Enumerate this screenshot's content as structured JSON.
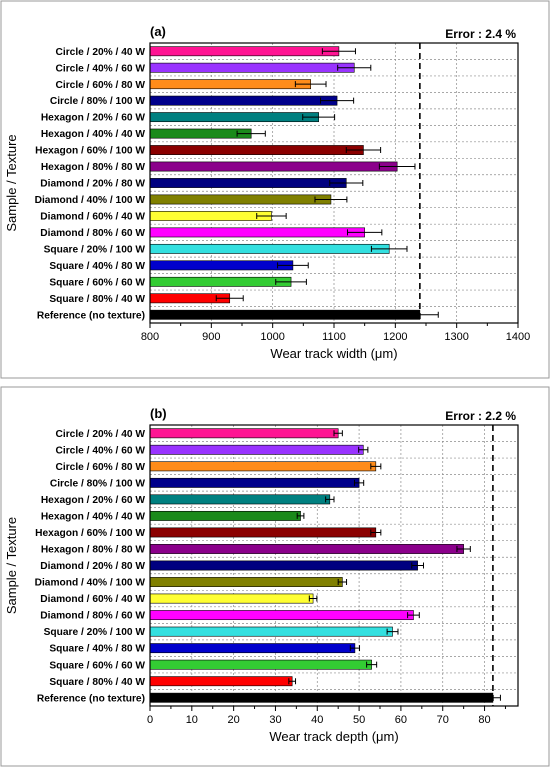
{
  "figure": {
    "ylabel": "Sample / Texture"
  },
  "chart_data": [
    {
      "type": "bar",
      "orientation": "horizontal",
      "panel": "(a)",
      "annotation": "Error : 2.4 %",
      "xlabel": "Wear track width",
      "xunit": "μm",
      "xlim": [
        800,
        1400
      ],
      "xticks": [
        800,
        900,
        1000,
        1100,
        1200,
        1300,
        1400
      ],
      "reference_line": 1240,
      "grid": true,
      "categories": [
        "Circle / 20% / 40 W",
        "Circle / 40% / 60 W",
        "Circle / 60% / 80 W",
        "Circle / 80% / 100 W",
        "Hexagon / 20% / 60 W",
        "Hexagon / 40% / 40 W",
        "Hexagon / 60% / 100 W",
        "Hexagon / 80% / 80 W",
        "Diamond / 20% / 80 W",
        "Diamond / 40% / 100 W",
        "Diamond / 60% / 40 W",
        "Diamond / 80% / 60 W",
        "Square / 20% / 100 W",
        "Square / 40% / 80 W",
        "Square / 60% / 60 W",
        "Square / 80% / 40 W",
        "Reference (no texture)"
      ],
      "values": [
        1108,
        1133,
        1062,
        1105,
        1075,
        965,
        1148,
        1203,
        1120,
        1095,
        998,
        1150,
        1190,
        1033,
        1030,
        930,
        1240
      ],
      "errors": [
        27,
        27,
        25,
        27,
        26,
        23,
        28,
        29,
        27,
        26,
        24,
        28,
        29,
        25,
        25,
        22,
        30
      ],
      "colors": [
        "#ff1493",
        "#9933ff",
        "#ff8c1a",
        "#00008b",
        "#008080",
        "#1a8a1a",
        "#8b0000",
        "#8b008b",
        "#000080",
        "#808000",
        "#ffff33",
        "#ff00ff",
        "#33e0e0",
        "#0000cc",
        "#33cc33",
        "#ff0000",
        "#000000"
      ]
    },
    {
      "type": "bar",
      "orientation": "horizontal",
      "panel": "(b)",
      "annotation": "Error : 2.2 %",
      "xlabel": "Wear track depth",
      "xunit": "μm",
      "xlim": [
        0,
        88
      ],
      "xticks": [
        0,
        10,
        20,
        30,
        40,
        50,
        60,
        70,
        80
      ],
      "reference_line": 82,
      "grid": true,
      "categories": [
        "Circle / 20% / 40 W",
        "Circle / 40% / 60 W",
        "Circle / 60% / 80 W",
        "Circle / 80% / 100 W",
        "Hexagon / 20% / 60 W",
        "Hexagon / 40% / 40 W",
        "Hexagon / 60% / 100 W",
        "Hexagon / 80% / 80 W",
        "Diamond / 20% / 80 W",
        "Diamond / 40% / 100 W",
        "Diamond / 60% / 40 W",
        "Diamond / 80% / 60 W",
        "Square / 20% / 100 W",
        "Square / 40% / 80 W",
        "Square / 60% / 60 W",
        "Square / 80% / 40 W",
        "Reference (no texture)"
      ],
      "values": [
        45,
        51,
        54,
        50,
        43,
        36,
        54,
        75,
        64,
        46,
        39,
        63,
        58,
        49,
        53,
        34,
        82
      ],
      "errors": [
        1.0,
        1.1,
        1.2,
        1.1,
        1.0,
        0.8,
        1.2,
        1.6,
        1.4,
        1.0,
        0.9,
        1.4,
        1.3,
        1.1,
        1.2,
        0.8,
        1.8
      ],
      "colors": [
        "#ff1493",
        "#9933ff",
        "#ff8c1a",
        "#00008b",
        "#008080",
        "#1a8a1a",
        "#8b0000",
        "#8b008b",
        "#000080",
        "#808000",
        "#ffff33",
        "#ff00ff",
        "#33e0e0",
        "#0000cc",
        "#33cc33",
        "#ff0000",
        "#000000"
      ]
    }
  ]
}
